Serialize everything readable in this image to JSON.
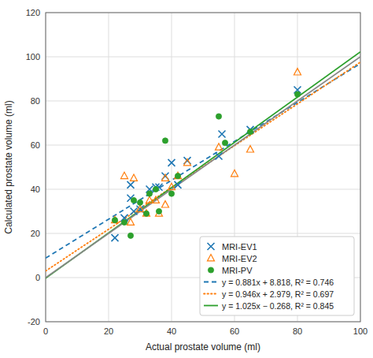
{
  "chart_data": {
    "type": "scatter",
    "xlabel": "Actual prostate volume (ml)",
    "ylabel": "Calculated prostate volume (ml)",
    "xlim": [
      0,
      100
    ],
    "ylim": [
      -20,
      120
    ],
    "xticks": [
      0,
      20,
      40,
      60,
      80,
      100
    ],
    "yticks": [
      -20,
      0,
      20,
      40,
      60,
      80,
      100,
      120
    ],
    "grid": true,
    "legend": "lower right",
    "series": [
      {
        "name": "MRI-EV1",
        "type": "scatter",
        "marker": "x",
        "x": [
          22,
          25,
          27,
          27,
          28,
          30,
          33,
          35,
          36,
          38,
          40,
          42,
          45,
          55,
          56,
          65,
          80
        ],
        "values": [
          18,
          27,
          36,
          42,
          30,
          31,
          40,
          41,
          41,
          46,
          52,
          42,
          53,
          55,
          65,
          67,
          85
        ]
      },
      {
        "name": "MRI-EV2",
        "type": "scatter",
        "marker": "triangle",
        "x": [
          22,
          25,
          27,
          28,
          30,
          32,
          33,
          35,
          36,
          38,
          38,
          40,
          42,
          45,
          55,
          60,
          65,
          80
        ],
        "values": [
          26,
          46,
          25,
          45,
          31,
          29,
          35,
          35,
          29,
          33,
          45,
          41,
          46,
          52,
          59,
          47,
          58,
          93
        ]
      },
      {
        "name": "MRI-PV",
        "type": "scatter",
        "marker": "circle",
        "x": [
          22,
          25,
          27,
          28,
          30,
          32,
          33,
          35,
          36,
          38,
          40,
          42,
          55,
          57,
          65,
          80
        ],
        "values": [
          26,
          25,
          19,
          35,
          34,
          29,
          38,
          40,
          30,
          62,
          38,
          46,
          73,
          61,
          66,
          83
        ]
      },
      {
        "name": "y = 0.881x + 8.818, R² = 0.746",
        "type": "line",
        "line_style": "dashed",
        "x": [
          0,
          100
        ],
        "values": [
          8.818,
          96.918
        ]
      },
      {
        "name": "y = 0.946x + 2.979, R² = 0.697",
        "type": "line",
        "line_style": "dotted",
        "x": [
          0,
          100
        ],
        "values": [
          2.979,
          97.579
        ]
      },
      {
        "name": "y = 1.025x − 0.268, R² = 0.845",
        "type": "line",
        "line_style": "solid",
        "x": [
          0,
          100
        ],
        "values": [
          -0.268,
          102.232
        ]
      },
      {
        "type": "line",
        "line_style": "solid",
        "x": [
          0,
          100
        ],
        "values": [
          0,
          100
        ]
      }
    ]
  }
}
